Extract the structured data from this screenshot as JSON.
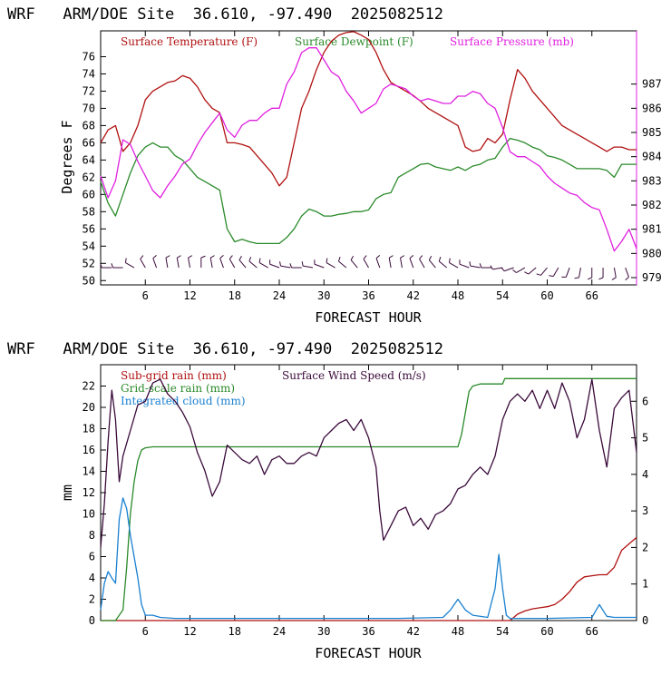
{
  "chart_data": [
    {
      "type": "line",
      "title": "WRF   ARM/DOE Site  36.610, -97.490  2025082512",
      "xlabel": "FORECAST HOUR",
      "ylabel": "Degrees F",
      "xlim": [
        0,
        72
      ],
      "ylim": [
        49.5,
        79
      ],
      "y2lim": [
        978.7,
        989.2
      ],
      "x_ticks": [
        6,
        12,
        18,
        24,
        30,
        36,
        42,
        48,
        54,
        60,
        66
      ],
      "x_tick_labels": [
        "6",
        "12",
        "18",
        "24",
        "30",
        "36",
        "42",
        "48",
        "54",
        "60",
        "66"
      ],
      "y_ticks": [
        50,
        52,
        54,
        56,
        58,
        60,
        62,
        64,
        66,
        68,
        70,
        72,
        74,
        76
      ],
      "y_tick_labels": [
        "50",
        "52",
        "54",
        "56",
        "58",
        "60",
        "62",
        "64",
        "66",
        "68",
        "70",
        "72",
        "74",
        "76"
      ],
      "y2_ticks": [
        979,
        980,
        981,
        982,
        983,
        984,
        985,
        986,
        987
      ],
      "y2_tick_labels": [
        "979",
        "980",
        "981",
        "982",
        "983",
        "984",
        "985",
        "986",
        "987"
      ],
      "grid": false,
      "legend_position": "top",
      "series": [
        {
          "name": "Surface Temperature (F)",
          "color": "#b01010",
          "axis": "left",
          "x": [
            0,
            1,
            2,
            3,
            4,
            5,
            6,
            7,
            8,
            9,
            10,
            11,
            12,
            13,
            14,
            15,
            16,
            17,
            18,
            19,
            20,
            21,
            22,
            23,
            24,
            25,
            26,
            27,
            28,
            29,
            30,
            31,
            32,
            33,
            34,
            35,
            36,
            37,
            38,
            39,
            40,
            41,
            42,
            43,
            44,
            45,
            46,
            47,
            48,
            49,
            50,
            51,
            52,
            53,
            54,
            55,
            56,
            57,
            58,
            59,
            60,
            61,
            62,
            63,
            64,
            65,
            66,
            67,
            68,
            69,
            70,
            71,
            72
          ],
          "y": [
            66,
            67.5,
            68,
            65,
            66,
            68,
            71,
            72,
            72.5,
            73,
            73.2,
            73.8,
            73.5,
            72.5,
            71,
            70,
            69.5,
            66,
            66,
            65.8,
            65.5,
            64.5,
            63.5,
            62.5,
            61,
            62,
            66,
            70,
            72,
            74.5,
            76.5,
            77.8,
            78.5,
            78.8,
            78.9,
            78.5,
            78,
            76.5,
            74.5,
            73,
            72.5,
            72,
            71.5,
            70.8,
            70,
            69.5,
            69,
            68.5,
            68,
            65.5,
            65,
            65.2,
            66.5,
            66,
            67,
            71,
            74.5,
            73.5,
            72,
            71,
            70,
            69,
            68,
            67.5,
            67,
            66.5,
            66,
            65.5,
            65,
            65.5,
            65.5,
            65.2,
            65.2
          ]
        },
        {
          "name": "Surface Dewpoint (F)",
          "color": "#2a8a2a",
          "axis": "left",
          "x": [
            0,
            1,
            2,
            3,
            4,
            5,
            6,
            7,
            8,
            9,
            10,
            11,
            12,
            13,
            14,
            15,
            16,
            17,
            18,
            19,
            20,
            21,
            22,
            23,
            24,
            25,
            26,
            27,
            28,
            29,
            30,
            31,
            32,
            33,
            34,
            35,
            36,
            37,
            38,
            39,
            40,
            41,
            42,
            43,
            44,
            45,
            46,
            47,
            48,
            49,
            50,
            51,
            52,
            53,
            54,
            55,
            56,
            57,
            58,
            59,
            60,
            61,
            62,
            63,
            64,
            65,
            66,
            67,
            68,
            69,
            70,
            71,
            72
          ],
          "y": [
            61.5,
            59,
            57.5,
            60,
            62.5,
            64.5,
            65.5,
            66,
            65.5,
            65.5,
            64.5,
            64,
            63,
            62,
            61.5,
            61,
            60.5,
            56,
            54.5,
            54.8,
            54.5,
            54.3,
            54.3,
            54.3,
            54.3,
            55,
            56,
            57.5,
            58.3,
            58,
            57.5,
            57.5,
            57.7,
            57.8,
            58,
            58,
            58.2,
            59.5,
            60,
            60.2,
            62,
            62.5,
            63,
            63.5,
            63.6,
            63.2,
            63,
            62.8,
            63.2,
            62.8,
            63.3,
            63.5,
            64,
            64.2,
            65.5,
            66.5,
            66.3,
            66,
            65.5,
            65.2,
            64.5,
            64.3,
            64,
            63.5,
            63,
            63,
            63,
            63,
            62.8,
            62,
            63.5,
            63.5,
            63.5
          ]
        },
        {
          "name": "Surface Pressure (mb)",
          "color": "#e020e0",
          "axis": "right",
          "x": [
            0,
            1,
            2,
            3,
            4,
            5,
            6,
            7,
            8,
            9,
            10,
            11,
            12,
            13,
            14,
            15,
            16,
            17,
            18,
            19,
            20,
            21,
            22,
            23,
            24,
            25,
            26,
            27,
            28,
            29,
            30,
            31,
            32,
            33,
            34,
            35,
            36,
            37,
            38,
            39,
            40,
            41,
            42,
            43,
            44,
            45,
            46,
            47,
            48,
            49,
            50,
            51,
            52,
            53,
            54,
            55,
            56,
            57,
            58,
            59,
            60,
            61,
            62,
            63,
            64,
            65,
            66,
            67,
            68,
            69,
            70,
            71,
            72
          ],
          "y": [
            983.2,
            982.3,
            983,
            984.7,
            984.5,
            983.8,
            983.2,
            982.6,
            982.3,
            982.8,
            983.2,
            983.7,
            983.9,
            984.5,
            985.0,
            985.4,
            985.8,
            985.1,
            984.8,
            985.3,
            985.5,
            985.5,
            985.8,
            986.0,
            986.0,
            987.0,
            987.5,
            988.3,
            988.5,
            988.5,
            988.0,
            987.5,
            987.3,
            986.7,
            986.3,
            985.8,
            986.0,
            986.2,
            986.8,
            987.0,
            986.9,
            986.8,
            986.5,
            986.3,
            986.4,
            986.3,
            986.2,
            986.2,
            986.5,
            986.5,
            986.7,
            986.6,
            986.2,
            986.0,
            985.2,
            984.2,
            984.0,
            984.0,
            983.8,
            983.6,
            983.2,
            982.9,
            982.7,
            982.5,
            982.4,
            982.1,
            981.9,
            981.8,
            981.0,
            980.1,
            980.5,
            981.0,
            980.2
          ]
        }
      ],
      "wind_barbs": {
        "row_value": 51.5,
        "x": [
          1.5,
          3,
          4.5,
          6,
          7.5,
          9,
          10.5,
          12,
          13.5,
          15,
          16.5,
          18,
          19.5,
          21,
          22.5,
          24,
          25.5,
          27,
          28.5,
          30,
          31.5,
          33,
          34.5,
          36,
          37.5,
          39,
          40.5,
          42,
          43.5,
          45,
          46.5,
          48,
          49.5,
          51,
          52.5,
          54,
          55.5,
          57,
          58.5,
          60,
          61.5,
          63,
          64.5,
          66,
          67.5,
          69,
          70.5
        ],
        "dir_deg": [
          270,
          270,
          300,
          330,
          340,
          350,
          350,
          350,
          360,
          350,
          340,
          330,
          320,
          310,
          300,
          290,
          280,
          270,
          280,
          290,
          300,
          310,
          320,
          330,
          340,
          350,
          350,
          340,
          330,
          320,
          310,
          300,
          290,
          280,
          270,
          260,
          250,
          240,
          230,
          220,
          210,
          200,
          190,
          180,
          180,
          170,
          160
        ]
      }
    },
    {
      "type": "line",
      "title": "WRF   ARM/DOE Site  36.610, -97.490  2025082512",
      "xlabel": "FORECAST HOUR",
      "ylabel": "mm",
      "xlim": [
        0,
        72
      ],
      "ylim": [
        0,
        24
      ],
      "y2lim": [
        0,
        7
      ],
      "x_ticks": [
        6,
        12,
        18,
        24,
        30,
        36,
        42,
        48,
        54,
        60,
        66
      ],
      "x_tick_labels": [
        "6",
        "12",
        "18",
        "24",
        "30",
        "36",
        "42",
        "48",
        "54",
        "60",
        "66"
      ],
      "y_ticks": [
        0,
        2,
        4,
        6,
        8,
        10,
        12,
        14,
        16,
        18,
        20,
        22
      ],
      "y_tick_labels": [
        "0",
        "2",
        "4",
        "6",
        "8",
        "10",
        "12",
        "14",
        "16",
        "18",
        "20",
        "22"
      ],
      "y2_ticks": [
        0,
        1,
        2,
        3,
        4,
        5,
        6
      ],
      "y2_tick_labels": [
        "0",
        "1",
        "2",
        "3",
        "4",
        "5",
        "6"
      ],
      "grid": false,
      "legend_position": "top",
      "series": [
        {
          "name": "Sub-grid rain (mm)",
          "color": "#b01010",
          "axis": "left",
          "x": [
            0,
            55,
            56,
            57,
            58,
            59,
            60,
            61,
            62,
            63,
            64,
            65,
            66,
            67,
            68,
            69,
            70,
            71,
            72
          ],
          "y": [
            0,
            0,
            0.6,
            0.9,
            1.1,
            1.2,
            1.3,
            1.5,
            2.0,
            2.7,
            3.6,
            4.1,
            4.2,
            4.3,
            4.3,
            5.0,
            6.6,
            7.2,
            7.8
          ]
        },
        {
          "name": "Grid-scale rain (mm)",
          "color": "#2a8a2a",
          "axis": "left",
          "x": [
            0,
            1,
            2,
            3,
            3.5,
            4,
            4.5,
            5,
            5.5,
            6,
            7,
            12,
            24,
            36,
            47,
            48,
            48.5,
            49,
            49.5,
            50,
            51,
            53,
            54,
            54.3,
            55,
            60,
            66,
            72
          ],
          "y": [
            0,
            0,
            0,
            1,
            5,
            10,
            13,
            15,
            16,
            16.2,
            16.3,
            16.3,
            16.3,
            16.3,
            16.3,
            16.3,
            17.5,
            19.5,
            21.5,
            22,
            22.2,
            22.2,
            22.2,
            22.7,
            22.7,
            22.7,
            22.7,
            22.7
          ]
        },
        {
          "name": "Integrated cloud (mm)",
          "color": "#1a80d0",
          "axis": "left",
          "x": [
            0,
            0.5,
            1,
            1.5,
            2,
            2.5,
            3,
            3.5,
            4,
            4.5,
            5,
            5.5,
            6,
            7,
            8,
            10,
            20,
            30,
            40,
            46,
            47,
            48,
            49,
            50,
            52,
            53,
            53.5,
            54,
            54.5,
            55,
            56,
            60,
            66,
            67,
            68,
            69,
            70,
            72
          ],
          "y": [
            1.0,
            3.5,
            4.6,
            4.0,
            3.5,
            9.5,
            11.5,
            10.5,
            8.0,
            6.0,
            4.0,
            1.5,
            0.5,
            0.5,
            0.3,
            0.2,
            0.2,
            0.2,
            0.2,
            0.3,
            1.0,
            2.0,
            1.0,
            0.5,
            0.3,
            3.0,
            6.2,
            3.0,
            0.5,
            0.2,
            0.2,
            0.2,
            0.3,
            1.5,
            0.4,
            0.3,
            0.3,
            0.3
          ]
        },
        {
          "name": "Surface Wind Speed (m/s)",
          "color": "#3a0a3a",
          "axis": "right",
          "x": [
            0,
            0.5,
            1,
            1.5,
            2,
            2.5,
            3,
            4,
            5,
            6,
            7,
            8,
            9,
            10,
            11,
            12,
            13,
            14,
            15,
            16,
            17,
            18,
            19,
            20,
            21,
            22,
            23,
            24,
            25,
            26,
            27,
            28,
            29,
            30,
            31,
            32,
            33,
            34,
            35,
            36,
            37,
            37.5,
            38,
            39,
            40,
            41,
            42,
            43,
            44,
            45,
            46,
            47,
            48,
            49,
            50,
            51,
            52,
            53,
            54,
            55,
            56,
            57,
            58,
            59,
            60,
            61,
            62,
            63,
            64,
            65,
            66,
            67,
            68,
            69,
            70,
            71,
            72
          ],
          "y": [
            2.0,
            3.2,
            4.9,
            6.3,
            5.5,
            3.8,
            4.5,
            5.2,
            5.9,
            6.0,
            6.5,
            6.6,
            6.2,
            6.0,
            5.7,
            5.3,
            4.6,
            4.1,
            3.4,
            3.8,
            4.8,
            4.6,
            4.4,
            4.3,
            4.5,
            4.0,
            4.4,
            4.5,
            4.3,
            4.3,
            4.5,
            4.6,
            4.5,
            5.0,
            5.2,
            5.4,
            5.5,
            5.2,
            5.5,
            5.0,
            4.2,
            3.0,
            2.2,
            2.6,
            3.0,
            3.1,
            2.6,
            2.8,
            2.5,
            2.9,
            3.0,
            3.2,
            3.6,
            3.7,
            4.0,
            4.2,
            4.0,
            4.5,
            5.5,
            6.0,
            6.2,
            6.0,
            6.3,
            5.8,
            6.3,
            5.8,
            6.5,
            6.0,
            5.0,
            5.5,
            6.6,
            5.2,
            4.2,
            5.8,
            6.1,
            6.3,
            4.6
          ]
        }
      ]
    }
  ]
}
